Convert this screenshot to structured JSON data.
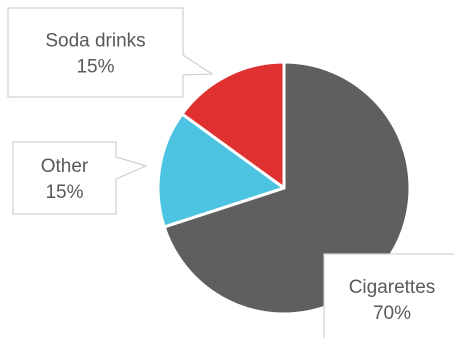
{
  "chart_data": {
    "type": "pie",
    "title": "",
    "slices": [
      {
        "label": "Cigarettes",
        "value": 70,
        "value_label": "70%",
        "color": "#5f5f5f"
      },
      {
        "label": "Other",
        "value": 15,
        "value_label": "15%",
        "color": "#4cc3e0"
      },
      {
        "label": "Soda drinks",
        "value": 15,
        "value_label": "15%",
        "color": "#e03131"
      }
    ],
    "data_labels": "callouts",
    "legend": "none"
  }
}
